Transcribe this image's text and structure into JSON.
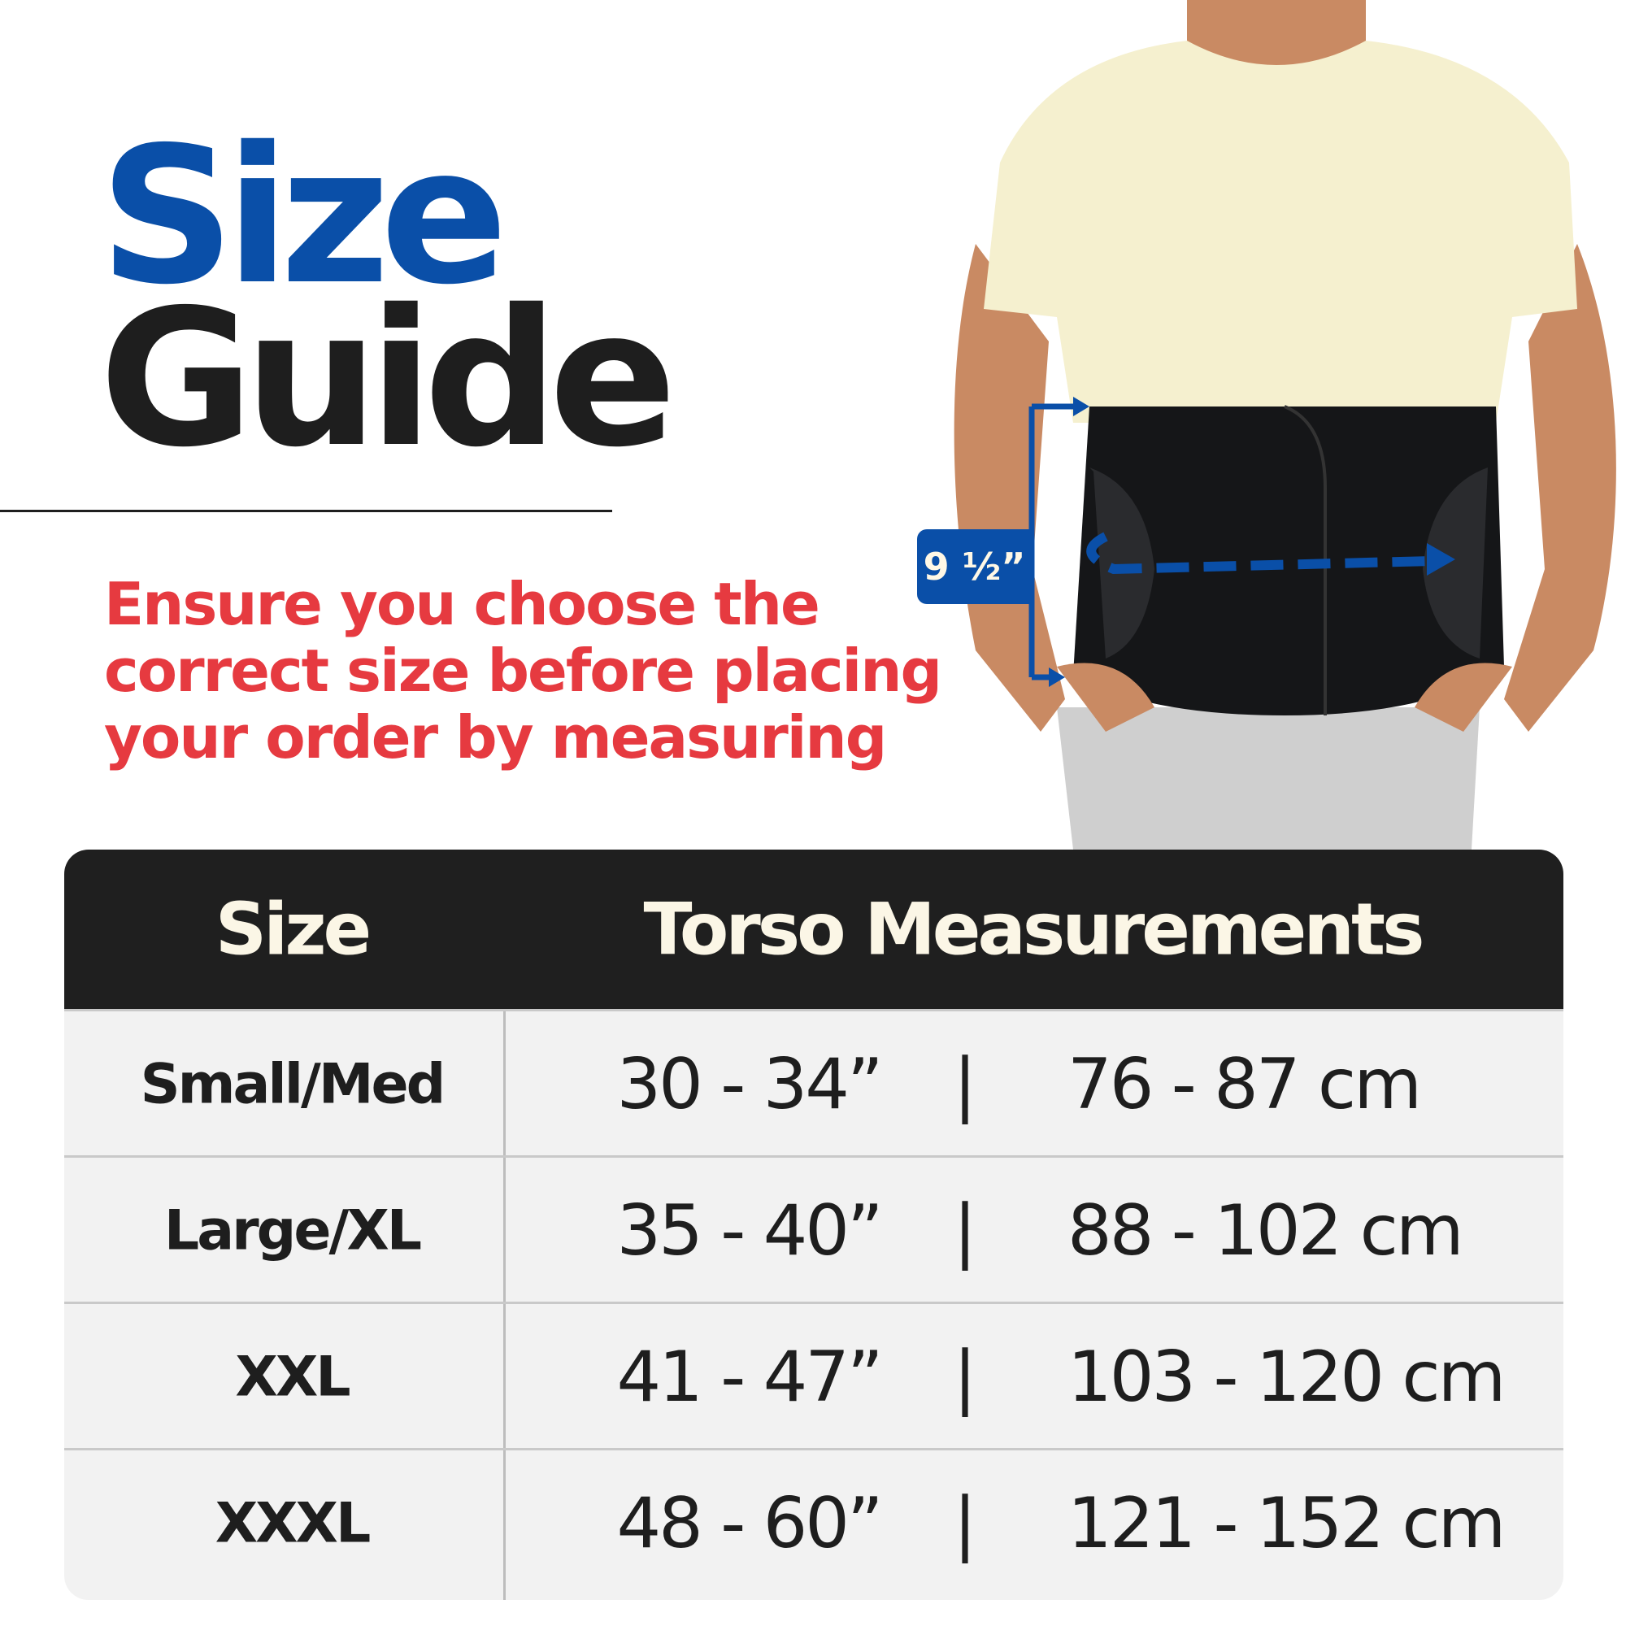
{
  "title": {
    "line1": "Size",
    "line2": "Guide"
  },
  "note": {
    "lines": [
      "Ensure you choose the",
      "correct size before placing",
      "your order by measuring"
    ]
  },
  "photo": {
    "brace_height_label": "9 ½”"
  },
  "colors": {
    "accent_blue": "#0a4fa8",
    "accent_red": "#e63a40",
    "header_bg": "#1f1f1f",
    "table_bg": "#f2f2f2"
  },
  "table": {
    "headers": [
      "Size",
      "Torso Measurements"
    ],
    "rows": [
      {
        "size": "Small/Med",
        "inches": "30 - 34”",
        "sep": "|",
        "cm": "76 - 87 cm"
      },
      {
        "size": "Large/XL",
        "inches": "35 - 40”",
        "sep": "|",
        "cm": "88 - 102 cm"
      },
      {
        "size": "XXL",
        "inches": "41 - 47”",
        "sep": "|",
        "cm": "103 - 120 cm"
      },
      {
        "size": "XXXL",
        "inches": "48 - 60”",
        "sep": "|",
        "cm": "121 - 152 cm"
      }
    ]
  }
}
